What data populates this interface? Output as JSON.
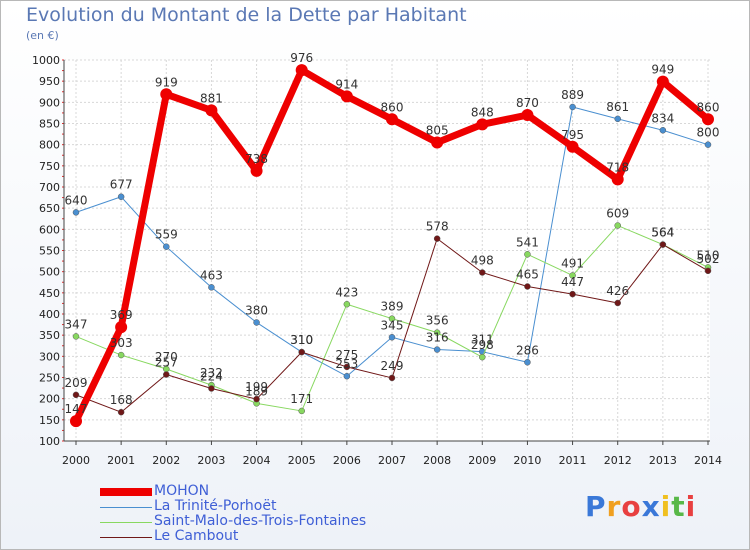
{
  "title": "Evolution du Montant de la Dette par Habitant",
  "subtitle": "(en €)",
  "logo": {
    "letters": [
      "P",
      "r",
      "o",
      "x",
      "i",
      "t",
      "i"
    ],
    "colors": [
      "#3a78d8",
      "#f0a020",
      "#e84040",
      "#3a78d8",
      "#f0c020",
      "#58b848",
      "#e84040"
    ]
  },
  "chart_data": {
    "type": "line",
    "x": [
      "2000",
      "2001",
      "2002",
      "2003",
      "2004",
      "2005",
      "2006",
      "2007",
      "2008",
      "2009",
      "2010",
      "2011",
      "2012",
      "2013",
      "2014"
    ],
    "ylim": [
      100,
      1000
    ],
    "yticks": [
      "100",
      "150",
      "200",
      "250",
      "300",
      "350",
      "400",
      "450",
      "500",
      "550",
      "600",
      "650",
      "700",
      "750",
      "800",
      "850",
      "900",
      "950",
      "1000"
    ],
    "grid": true,
    "legend_position": "bottom-left",
    "series": [
      {
        "name": "La Trinité-Porhoët",
        "color": "#4a8fd0",
        "width": 1,
        "values": [
          640,
          677,
          559,
          463,
          380,
          310,
          253,
          345,
          316,
          311,
          286,
          889,
          861,
          834,
          800
        ],
        "labels": [
          "640",
          "677",
          "559",
          "463",
          "380",
          "310",
          "253",
          "345",
          "316",
          "311",
          "286",
          "889",
          "861",
          "834",
          "800"
        ]
      },
      {
        "name": "Saint-Malo-des-Trois-Fontaines",
        "color": "#88d860",
        "width": 1,
        "values": [
          347,
          303,
          270,
          232,
          189,
          171,
          423,
          389,
          356,
          298,
          541,
          491,
          609,
          564,
          510
        ],
        "labels": [
          "347",
          "303",
          "270",
          "232",
          "189",
          "171",
          "423",
          "389",
          "356",
          "298",
          "541",
          "491",
          "609",
          "564",
          "510"
        ]
      },
      {
        "name": "Le Cambout",
        "color": "#701818",
        "width": 1,
        "values": [
          209,
          168,
          257,
          224,
          199,
          310,
          275,
          249,
          578,
          498,
          465,
          447,
          426,
          564,
          502
        ],
        "labels": [
          "209",
          "168",
          "257",
          "224",
          "199",
          "310",
          "275",
          "249",
          "578",
          "498",
          "465",
          "447",
          "426",
          "564",
          "502"
        ]
      },
      {
        "name": "MOHON",
        "color": "#ee0000",
        "width": 7,
        "values": [
          147,
          369,
          919,
          881,
          738,
          976,
          914,
          860,
          805,
          848,
          870,
          795,
          718,
          949,
          860
        ],
        "labels": [
          "147",
          "369",
          "919",
          "881",
          "738",
          "976",
          "914",
          "860",
          "805",
          "848",
          "870",
          "795",
          "718",
          "949",
          "860"
        ]
      }
    ],
    "legend_order": [
      "MOHON",
      "La Trinité-Porhoët",
      "Saint-Malo-des-Trois-Fontaines",
      "Le Cambout"
    ]
  }
}
